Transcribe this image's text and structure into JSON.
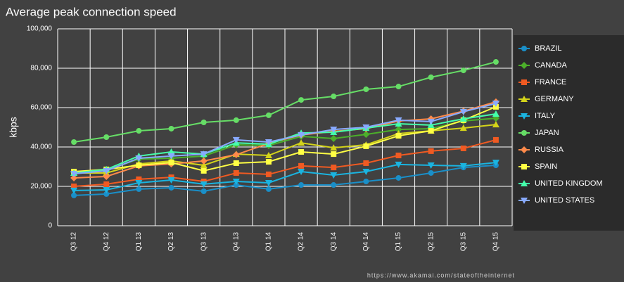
{
  "chart_data": {
    "type": "line",
    "title": "Average peak connection speed",
    "y_label": "kbps",
    "source": "https://www.akamai.com/stateoftheinternet",
    "categories": [
      "Q3 12",
      "Q4 12",
      "Q1 13",
      "Q2 13",
      "Q3 13",
      "Q4 13",
      "Q1 14",
      "Q2 14",
      "Q3 14",
      "Q4 14",
      "Q1 15",
      "Q2 15",
      "Q3 15",
      "Q4 15"
    ],
    "ylim": [
      0,
      100000
    ],
    "yticks": [
      0,
      {
        "value": 20000,
        "label": "20,000"
      },
      {
        "value": 40000,
        "label": "40,000"
      },
      {
        "value": 60000,
        "label": "60,000"
      },
      {
        "value": 80000,
        "label": "80,000"
      },
      {
        "value": 100000,
        "label": "100,000"
      }
    ],
    "grid": true,
    "legend": "right",
    "series": [
      {
        "name": "BRAZIL",
        "color": "#1a8fc8",
        "marker": "circle",
        "values": [
          15400,
          16100,
          18600,
          19300,
          17500,
          20700,
          18600,
          20700,
          20700,
          22500,
          24300,
          26800,
          29600,
          30700
        ]
      },
      {
        "name": "CANADA",
        "color": "#4caf2a",
        "marker": "diamond",
        "values": [
          27100,
          28200,
          33900,
          34300,
          35400,
          41100,
          40700,
          45400,
          44300,
          46400,
          48900,
          49300,
          53200,
          54600
        ]
      },
      {
        "name": "FRANCE",
        "color": "#f05a22",
        "marker": "square",
        "values": [
          20000,
          21100,
          23600,
          24600,
          22500,
          26800,
          26100,
          30400,
          29600,
          31800,
          35700,
          37900,
          39300,
          43600
        ]
      },
      {
        "name": "GERMANY",
        "color": "#d4d41a",
        "marker": "triangle",
        "values": [
          26800,
          26800,
          31400,
          32900,
          30700,
          36400,
          35700,
          42100,
          39600,
          41100,
          46800,
          48200,
          49600,
          51400
        ]
      },
      {
        "name": "ITALY",
        "color": "#1ab4e0",
        "marker": "triangle-down",
        "values": [
          17900,
          18200,
          21800,
          23200,
          21100,
          22500,
          21800,
          27500,
          25700,
          27500,
          31100,
          30700,
          30400,
          32100
        ]
      },
      {
        "name": "JAPAN",
        "color": "#66dd66",
        "marker": "circle",
        "values": [
          42500,
          45000,
          48200,
          49300,
          52500,
          53600,
          56100,
          63900,
          65700,
          69300,
          70700,
          75400,
          78900,
          83200
        ]
      },
      {
        "name": "RUSSIA",
        "color": "#ff8a4a",
        "marker": "diamond",
        "values": [
          24300,
          25000,
          30400,
          31400,
          32900,
          36100,
          41800,
          46100,
          47900,
          49300,
          53200,
          54300,
          58200,
          62900
        ]
      },
      {
        "name": "SPAIN",
        "color": "#ffff44",
        "marker": "square",
        "values": [
          27500,
          28600,
          30700,
          32100,
          27900,
          31800,
          32500,
          37500,
          36400,
          40400,
          45700,
          48200,
          53600,
          60400
        ]
      },
      {
        "name": "UNITED KINGDOM",
        "color": "#44ffaa",
        "marker": "triangle",
        "values": [
          26800,
          28600,
          35400,
          37500,
          36400,
          42100,
          41400,
          47100,
          47500,
          49600,
          51800,
          51100,
          54300,
          56800
        ]
      },
      {
        "name": "UNITED STATES",
        "color": "#88aaff",
        "marker": "triangle-down",
        "values": [
          26400,
          27900,
          34300,
          35400,
          36400,
          43600,
          42500,
          46100,
          48900,
          50000,
          53600,
          52900,
          57900,
          62100
        ]
      }
    ]
  }
}
